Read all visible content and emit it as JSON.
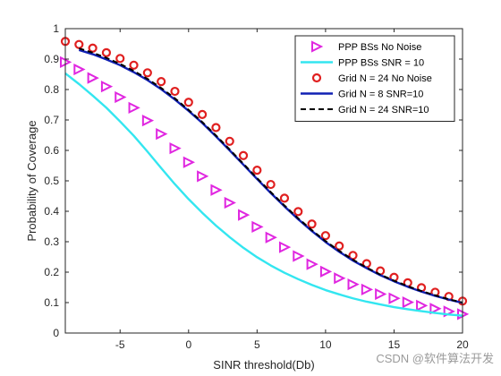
{
  "chart_data": {
    "type": "line",
    "title": "",
    "xlabel": "SINR threshold(Db)",
    "ylabel": "Probability of Coverage",
    "xlim": [
      -9,
      20
    ],
    "ylim": [
      0,
      1
    ],
    "xticks": [
      -5,
      0,
      5,
      10,
      15,
      20
    ],
    "xtick_labels": [
      "-5",
      "0",
      "5",
      "10",
      "15",
      "20"
    ],
    "yticks": [
      0,
      0.1,
      0.2,
      0.3,
      0.4,
      0.5,
      0.6,
      0.7,
      0.8,
      0.9,
      1
    ],
    "ytick_labels": [
      "0",
      "0.1",
      "0.2",
      "0.3",
      "0.4",
      "0.5",
      "0.6",
      "0.7",
      "0.8",
      "0.9",
      "1"
    ],
    "grid": false,
    "legend_position": "top-right",
    "series": [
      {
        "name": "PPP BSs No Noise",
        "style": "marker",
        "marker": "triangle-right",
        "color": "#e026e0",
        "x": [
          -9,
          -8,
          -7,
          -6,
          -5,
          -4,
          -3,
          -2,
          -1,
          0,
          1,
          2,
          3,
          4,
          5,
          6,
          7,
          8,
          9,
          10,
          11,
          12,
          13,
          14,
          15,
          16,
          17,
          18,
          19,
          20
        ],
        "y": [
          0.89,
          0.866,
          0.838,
          0.81,
          0.775,
          0.74,
          0.698,
          0.654,
          0.607,
          0.561,
          0.515,
          0.47,
          0.428,
          0.388,
          0.349,
          0.314,
          0.282,
          0.253,
          0.226,
          0.202,
          0.18,
          0.16,
          0.143,
          0.128,
          0.114,
          0.101,
          0.09,
          0.08,
          0.071,
          0.062
        ]
      },
      {
        "name": "PPP BSs SNR = 10",
        "style": "line",
        "line": "solid",
        "color": "#33e6f0",
        "x": [
          -9,
          -8,
          -7,
          -6,
          -5,
          -4,
          -3,
          -2,
          -1,
          0,
          1,
          2,
          3,
          4,
          5,
          6,
          7,
          8,
          9,
          10,
          11,
          12,
          13,
          14,
          15,
          16,
          17,
          18,
          19,
          20
        ],
        "y": [
          0.853,
          0.818,
          0.78,
          0.74,
          0.695,
          0.648,
          0.596,
          0.542,
          0.489,
          0.44,
          0.395,
          0.353,
          0.315,
          0.28,
          0.249,
          0.222,
          0.198,
          0.177,
          0.158,
          0.141,
          0.127,
          0.114,
          0.103,
          0.094,
          0.085,
          0.078,
          0.072,
          0.066,
          0.061,
          0.057
        ]
      },
      {
        "name": "Grid N = 24 No Noise",
        "style": "marker",
        "marker": "circle",
        "color": "#e02020",
        "x": [
          -9,
          -8,
          -7,
          -6,
          -5,
          -4,
          -3,
          -2,
          -1,
          0,
          1,
          2,
          3,
          4,
          5,
          6,
          7,
          8,
          9,
          10,
          11,
          12,
          13,
          14,
          15,
          16,
          17,
          18,
          19,
          20
        ],
        "y": [
          0.958,
          0.948,
          0.936,
          0.921,
          0.902,
          0.88,
          0.855,
          0.826,
          0.794,
          0.758,
          0.718,
          0.675,
          0.63,
          0.583,
          0.535,
          0.488,
          0.443,
          0.399,
          0.358,
          0.32,
          0.286,
          0.255,
          0.228,
          0.204,
          0.183,
          0.165,
          0.149,
          0.134,
          0.12,
          0.105
        ]
      },
      {
        "name": "Grid N = 8 SNR=10",
        "style": "line",
        "line": "solid",
        "color": "#1020b4",
        "x": [
          -8,
          -7,
          -6,
          -5,
          -4,
          -3,
          -2,
          -1,
          0,
          1,
          2,
          3,
          4,
          5,
          6,
          7,
          8,
          9,
          10,
          11,
          12,
          13,
          14,
          15,
          16,
          17,
          18,
          19,
          20
        ],
        "y": [
          0.93,
          0.916,
          0.899,
          0.88,
          0.857,
          0.831,
          0.801,
          0.767,
          0.73,
          0.69,
          0.646,
          0.6,
          0.553,
          0.506,
          0.46,
          0.416,
          0.374,
          0.335,
          0.299,
          0.267,
          0.238,
          0.213,
          0.19,
          0.17,
          0.152,
          0.136,
          0.122,
          0.11,
          0.099
        ]
      },
      {
        "name": "Grid N = 24 SNR=10",
        "style": "line",
        "line": "dashed",
        "color": "#000000",
        "x": [
          -8,
          -7,
          -6,
          -5,
          -4,
          -3,
          -2,
          -1,
          0,
          1,
          2,
          3,
          4,
          5,
          6,
          7,
          8,
          9,
          10,
          11,
          12,
          13,
          14,
          15,
          16,
          17,
          18,
          19,
          20
        ],
        "y": [
          0.935,
          0.921,
          0.904,
          0.884,
          0.861,
          0.835,
          0.805,
          0.771,
          0.733,
          0.693,
          0.649,
          0.603,
          0.556,
          0.509,
          0.463,
          0.419,
          0.377,
          0.338,
          0.302,
          0.27,
          0.241,
          0.215,
          0.192,
          0.172,
          0.154,
          0.138,
          0.124,
          0.111,
          0.1
        ]
      }
    ]
  },
  "watermark": "CSDN @软件算法开发"
}
